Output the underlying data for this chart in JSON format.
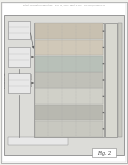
{
  "bg_color": "#f0f0ec",
  "header_text": "Patent Application Publication    Nov. 13, 2014  Sheet 2 of 8    US 2014/0339888 A1",
  "fig_label": "Fig. 2",
  "page_bg": "#ffffff",
  "border_color": "#999999",
  "line_color": "#555555",
  "box_fill": "#e8e8e8",
  "box_stroke": "#888888",
  "diagram_fill": "#dcdcd8",
  "layer_colors": [
    "#c8c8c0",
    "#b8b8b0",
    "#d0d0c8",
    "#c0c0b8",
    "#b8c0b8",
    "#d0c8b8",
    "#c8c0b0",
    "#d8d0c0"
  ],
  "tape_color": "#b0b0a8",
  "right_strip_color": "#d8d8d0"
}
